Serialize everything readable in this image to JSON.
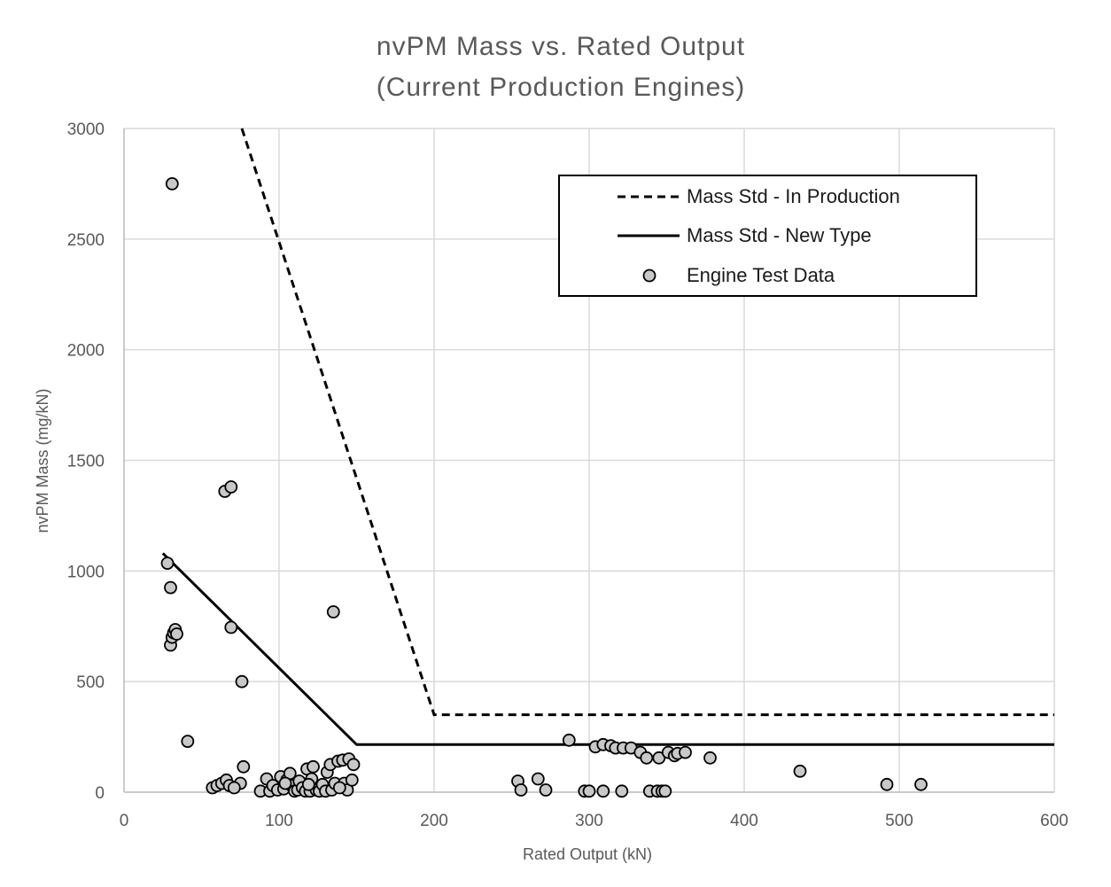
{
  "chart_data": {
    "type": "scatter",
    "title": [
      "nvPM Mass vs. Rated Output",
      "(Current Production Engines)"
    ],
    "xlabel": "Rated Output (kN)",
    "ylabel": "nvPM Mass (mg/kN)",
    "xlim": [
      0,
      600
    ],
    "ylim": [
      0,
      3000
    ],
    "xticks": [
      0,
      100,
      200,
      300,
      400,
      500,
      600
    ],
    "yticks": [
      0,
      500,
      1000,
      1500,
      2000,
      2500,
      3000
    ],
    "grid": true,
    "legend_position": "top-right",
    "series": [
      {
        "name": "Mass Std - In Production",
        "kind": "line",
        "style": "dashed",
        "color": "#000000",
        "points": [
          [
            76,
            3000
          ],
          [
            200,
            350
          ],
          [
            600,
            350
          ]
        ]
      },
      {
        "name": "Mass Std - New Type",
        "kind": "line",
        "style": "solid",
        "color": "#000000",
        "points": [
          [
            25,
            1080
          ],
          [
            150,
            215
          ],
          [
            600,
            215
          ]
        ]
      },
      {
        "name": "Engine Test Data",
        "kind": "scatter",
        "color": "#c8c8c8",
        "points": [
          [
            31,
            2750
          ],
          [
            28,
            1035
          ],
          [
            30,
            925
          ],
          [
            30,
            665
          ],
          [
            31,
            700
          ],
          [
            32,
            720
          ],
          [
            33,
            735
          ],
          [
            34,
            715
          ],
          [
            41,
            230
          ],
          [
            65,
            1360
          ],
          [
            69,
            1380
          ],
          [
            69,
            745
          ],
          [
            76,
            500
          ],
          [
            77,
            115
          ],
          [
            75,
            40
          ],
          [
            57,
            20
          ],
          [
            60,
            30
          ],
          [
            63,
            40
          ],
          [
            66,
            55
          ],
          [
            68,
            30
          ],
          [
            71,
            20
          ],
          [
            88,
            5
          ],
          [
            92,
            60
          ],
          [
            94,
            5
          ],
          [
            96,
            30
          ],
          [
            99,
            10
          ],
          [
            101,
            70
          ],
          [
            103,
            15
          ],
          [
            105,
            55
          ],
          [
            107,
            85
          ],
          [
            108,
            30
          ],
          [
            110,
            5
          ],
          [
            112,
            10
          ],
          [
            113,
            50
          ],
          [
            115,
            20
          ],
          [
            117,
            5
          ],
          [
            118,
            105
          ],
          [
            120,
            5
          ],
          [
            121,
            60
          ],
          [
            122,
            115
          ],
          [
            124,
            10
          ],
          [
            126,
            5
          ],
          [
            128,
            35
          ],
          [
            130,
            5
          ],
          [
            131,
            90
          ],
          [
            133,
            125
          ],
          [
            134,
            10
          ],
          [
            135,
            815
          ],
          [
            136,
            40
          ],
          [
            138,
            140
          ],
          [
            141,
            145
          ],
          [
            142,
            40
          ],
          [
            144,
            10
          ],
          [
            145,
            150
          ],
          [
            147,
            55
          ],
          [
            148,
            125
          ],
          [
            139,
            20
          ],
          [
            119,
            35
          ],
          [
            104,
            40
          ],
          [
            254,
            50
          ],
          [
            256,
            10
          ],
          [
            267,
            60
          ],
          [
            272,
            10
          ],
          [
            287,
            235
          ],
          [
            297,
            5
          ],
          [
            300,
            5
          ],
          [
            304,
            205
          ],
          [
            309,
            215
          ],
          [
            309,
            5
          ],
          [
            314,
            210
          ],
          [
            317,
            200
          ],
          [
            321,
            5
          ],
          [
            322,
            200
          ],
          [
            327,
            200
          ],
          [
            333,
            180
          ],
          [
            337,
            155
          ],
          [
            339,
            5
          ],
          [
            344,
            5
          ],
          [
            345,
            155
          ],
          [
            347,
            5
          ],
          [
            349,
            5
          ],
          [
            351,
            180
          ],
          [
            355,
            165
          ],
          [
            357,
            175
          ],
          [
            362,
            180
          ],
          [
            378,
            155
          ],
          [
            436,
            95
          ],
          [
            492,
            35
          ],
          [
            514,
            35
          ]
        ]
      }
    ]
  }
}
